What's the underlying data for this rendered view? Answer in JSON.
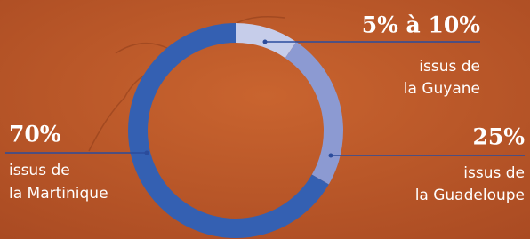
{
  "chart_data": {
    "type": "pie",
    "values": [
      10,
      25,
      70
    ],
    "value_labels": [
      "5% à 10%",
      "25%",
      "70%"
    ],
    "labels": [
      [
        "issus de",
        "la Guyane"
      ],
      [
        "issus de",
        "la Guadeloupe"
      ],
      [
        "issus de",
        "la Martinique"
      ]
    ],
    "colors": [
      "#c6cdea",
      "#8c9ad2",
      "#3460b2"
    ]
  }
}
